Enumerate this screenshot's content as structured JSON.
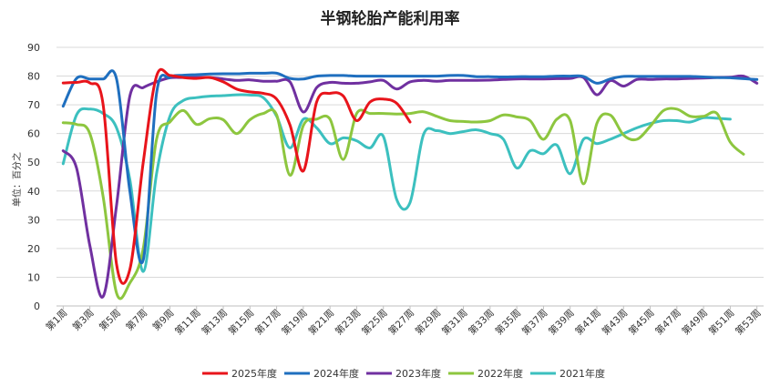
{
  "chart_data": {
    "type": "line",
    "title": "半钢轮胎产能利用率",
    "ylabel": "单位：百分之",
    "xlabel": "",
    "ylim": [
      0,
      90
    ],
    "yticks": [
      0,
      10,
      20,
      30,
      40,
      50,
      60,
      70,
      80,
      90
    ],
    "grid": true,
    "legend_position": "bottom",
    "x_tick_labels": [
      "第1周",
      "第3周",
      "第5周",
      "第7周",
      "第9周",
      "第11周",
      "第13周",
      "第15周",
      "第17周",
      "第19周",
      "第21周",
      "第23周",
      "第25周",
      "第27周",
      "第29周",
      "第31周",
      "第33周",
      "第35周",
      "第37周",
      "第39周",
      "第41周",
      "第43周",
      "第45周",
      "第47周",
      "第49周",
      "第51周",
      "第53周"
    ],
    "series": [
      {
        "name": "2025年度",
        "color": "#e8141b",
        "values": [
          77.6,
          77.8,
          77.6,
          70,
          14.5,
          12.7,
          50,
          80,
          80.2,
          79.5,
          79.2,
          79.5,
          78,
          75.5,
          74.5,
          74,
          72,
          63,
          47,
          71,
          74,
          73,
          64.5,
          71,
          72,
          70.5,
          64
        ]
      },
      {
        "name": "2024年度",
        "color": "#1f6fbf",
        "values": [
          69.5,
          79.2,
          79,
          79,
          79,
          40,
          16,
          74,
          79.5,
          80.3,
          80.5,
          80.7,
          80.8,
          80.8,
          81,
          81,
          81,
          79.2,
          79,
          80,
          80.2,
          80.2,
          80,
          80,
          80,
          80,
          80,
          80,
          80,
          80.2,
          80.2,
          79.8,
          79.8,
          79.7,
          79.8,
          79.8,
          79.8,
          80,
          80,
          79.9,
          77.5,
          79,
          79.9,
          79.9,
          79.9,
          79.9,
          79.9,
          79.9,
          79.7,
          79.5,
          79.4,
          79.1,
          78.8
        ]
      },
      {
        "name": "2023年度",
        "color": "#7030a0",
        "values": [
          54,
          48,
          21,
          3.3,
          35,
          73,
          76,
          78,
          79.4,
          79.5,
          79.5,
          79.5,
          79,
          78.5,
          78.7,
          78.2,
          78.2,
          78,
          67.5,
          76,
          77.8,
          77.5,
          77.5,
          78,
          78.5,
          75.5,
          78,
          78.5,
          78.2,
          78.5,
          78.5,
          78.5,
          78.6,
          78.8,
          79,
          79,
          79,
          79.1,
          79.2,
          79.5,
          73.5,
          78.4,
          76.5,
          78.8,
          78.8,
          79,
          79,
          79.2,
          79.3,
          79.5,
          79.6,
          80,
          77.5
        ]
      },
      {
        "name": "2022年度",
        "color": "#8dc63f",
        "values": [
          63.8,
          63.2,
          60,
          38,
          4.5,
          8,
          20,
          58,
          64,
          68,
          63.2,
          65.2,
          64.8,
          60,
          64.8,
          67,
          66.5,
          45.5,
          62.8,
          65,
          65,
          51,
          67,
          67,
          67,
          66.8,
          67,
          67.6,
          66,
          64.5,
          64.2,
          64,
          64.5,
          66.5,
          65.8,
          64.5,
          58,
          65,
          64.5,
          42.5,
          63.5,
          66.5,
          59.5,
          58,
          62.5,
          68,
          68.5,
          66,
          66,
          67,
          57,
          52.8
        ]
      },
      {
        "name": "2021年度",
        "color": "#3cc0bf",
        "values": [
          49.5,
          66.5,
          68.5,
          67,
          62,
          44,
          12,
          46,
          66,
          71.5,
          72.5,
          73,
          73.2,
          73.5,
          73.4,
          72.5,
          66,
          55,
          65,
          62,
          56.5,
          58.5,
          57.5,
          55,
          59,
          37,
          36,
          59.5,
          61,
          60,
          60.7,
          61.3,
          60,
          58,
          48,
          54,
          53,
          56,
          46,
          58,
          56.5,
          58,
          60,
          62,
          63.5,
          64.5,
          64.5,
          64,
          65.5,
          65.3,
          65
        ]
      }
    ]
  }
}
